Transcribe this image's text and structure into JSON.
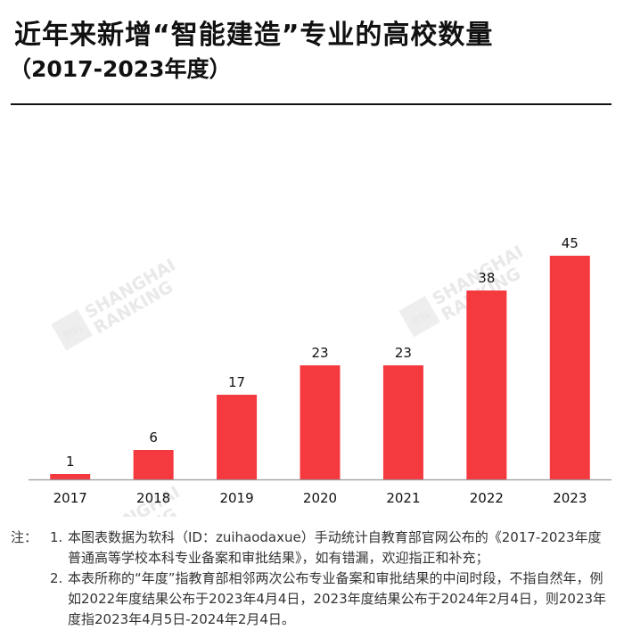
{
  "header": {
    "title": "近年来新增“智能建造”专业的高校数量",
    "subtitle": "（2017-2023年度）"
  },
  "watermark": {
    "line1": "SHANGHAI",
    "line2": "RANKING",
    "mark": "软科"
  },
  "colors": {
    "bar": "#f4393f",
    "axis": "#999999",
    "text": "#111111"
  },
  "chart_data": {
    "type": "bar",
    "title": "近年来新增“智能建造”专业的高校数量（2017-2023年度）",
    "categories": [
      "2017",
      "2018",
      "2019",
      "2020",
      "2021",
      "2022",
      "2023"
    ],
    "values": [
      1,
      6,
      17,
      23,
      23,
      38,
      45
    ],
    "xlabel": "",
    "ylabel": "",
    "ylim": [
      0,
      45
    ],
    "grid": false,
    "legend": "none"
  },
  "notes": {
    "prefix": "注：",
    "items": [
      {
        "num": "1.",
        "text": "本图表数据为软科（ID：zuihaodaxue）手动统计自教育部官网公布的《2017-2023年度普通高等学校本科专业备案和审批结果》，如有错漏，欢迎指正和补充；"
      },
      {
        "num": "2.",
        "text": "本表所称的“年度”指教育部相邻两次公布专业备案和审批结果的中间时段，不指自然年，例如2022年度结果公布于2023年4月4日，2023年度结果公布于2024年2月4日，则2023年度指2023年4月5日-2024年2月4日。"
      }
    ]
  }
}
